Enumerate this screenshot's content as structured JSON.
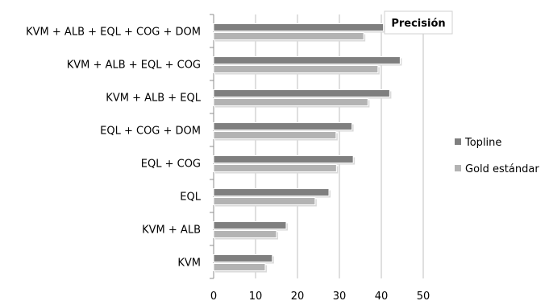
{
  "chart_data": {
    "type": "bar",
    "orientation": "horizontal",
    "title": "Precisión",
    "categories": [
      "KVM + ALB + EQL + COG + DOM",
      "KVM + ALB + EQL + COG",
      "KVM + ALB + EQL",
      "EQL + COG + DOM",
      "EQL + COG",
      "EQL",
      "KVM + ALB",
      "KVM"
    ],
    "series": [
      {
        "name": "Topline",
        "color": "#7f7f7f",
        "values": [
          40.5,
          44.5,
          42,
          33,
          33.3,
          27.5,
          17.3,
          14
        ]
      },
      {
        "name": "Gold estándar",
        "color": "#b3b3b3",
        "values": [
          35.8,
          39.2,
          36.8,
          29.2,
          29.3,
          24.2,
          15,
          12.3
        ]
      }
    ],
    "xlim": [
      0,
      50
    ],
    "xticks": [
      0,
      10,
      20,
      30,
      40,
      50
    ],
    "xlabel": "",
    "ylabel": "",
    "grid": true,
    "legend": "right"
  }
}
